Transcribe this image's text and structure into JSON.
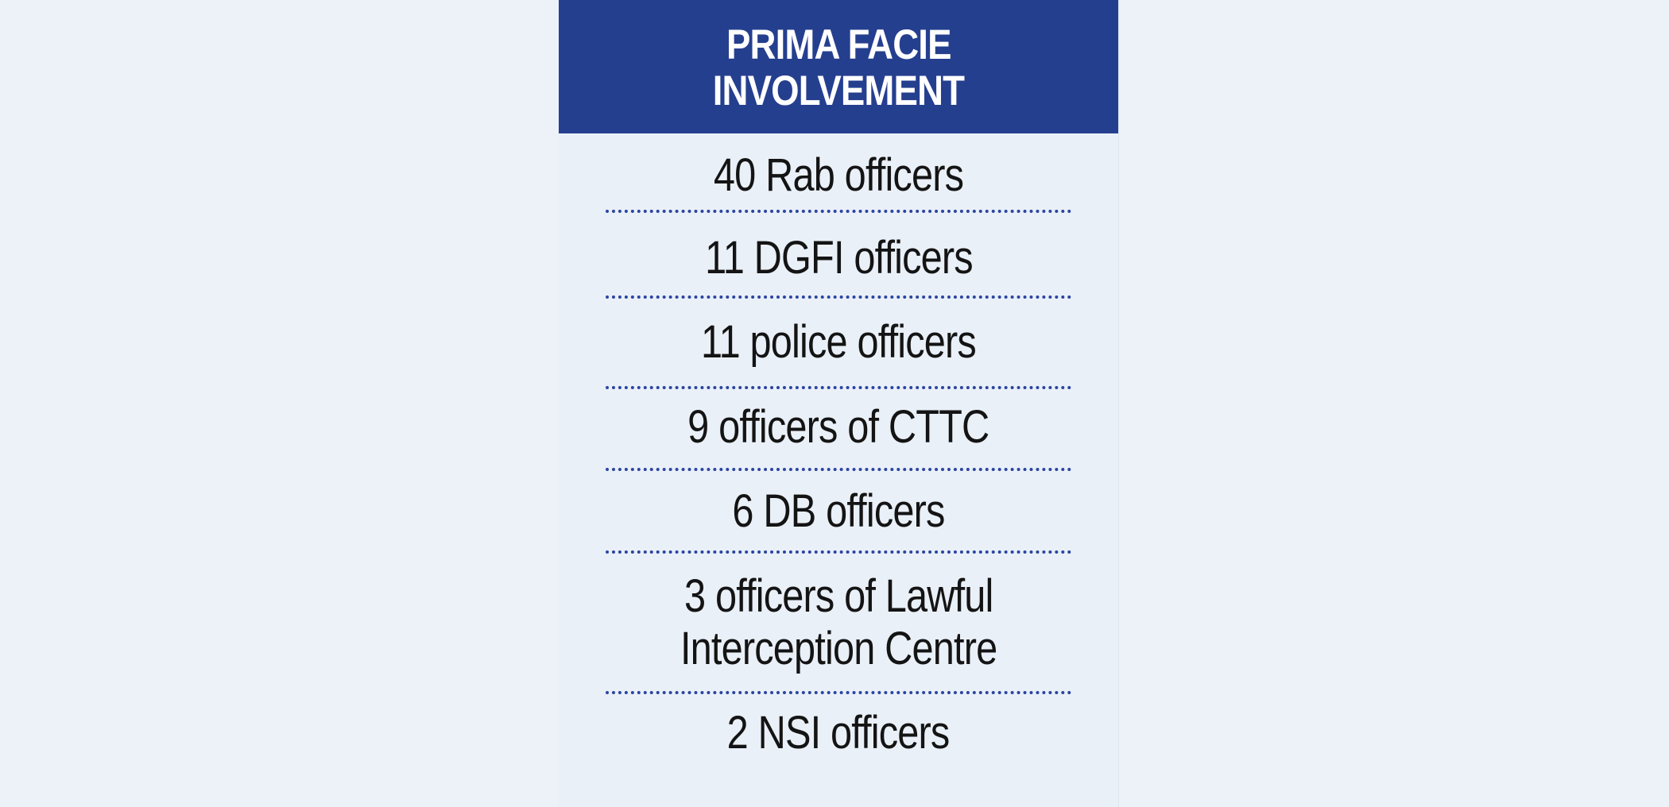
{
  "header": {
    "title_line1": "PRIMA FACIE",
    "title_line2": "INVOLVEMENT"
  },
  "items": [
    {
      "lines": [
        "40 Rab officers"
      ]
    },
    {
      "lines": [
        "11 DGFI officers"
      ]
    },
    {
      "lines": [
        "11 police officers"
      ]
    },
    {
      "lines": [
        "9 officers of CTTC"
      ]
    },
    {
      "lines": [
        "6 DB officers"
      ]
    },
    {
      "lines": [
        "3 officers of Lawful",
        "Interception Centre"
      ]
    },
    {
      "lines": [
        "2 NSI officers"
      ]
    }
  ],
  "colors": {
    "background": "#edf2f9",
    "panel": "#eaf0f8",
    "header": "#253f8f",
    "header_text": "#ffffff",
    "item_text": "#141414",
    "divider": "#2b45a0"
  }
}
